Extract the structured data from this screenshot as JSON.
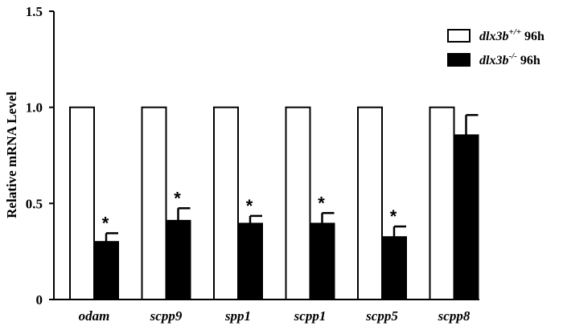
{
  "chart_data": {
    "type": "bar",
    "ylabel": "Relative mRNA Level",
    "ylim": [
      0,
      1.5
    ],
    "yticks": [
      "0",
      "0.5",
      "1.0",
      "1.5"
    ],
    "categories": [
      "odam",
      "scpp9",
      "spp1",
      "scpp1",
      "scpp5",
      "scpp8"
    ],
    "series": [
      {
        "name": "dlx3b+/+ 96h",
        "legend_gene": "dlx3b",
        "legend_sup": "+/+",
        "legend_suffix": " 96h",
        "fill": "#ffffff",
        "values": [
          1.0,
          1.0,
          1.0,
          1.0,
          1.0,
          1.0
        ],
        "errors": [
          0,
          0,
          0,
          0,
          0,
          0
        ]
      },
      {
        "name": "dlx3b-/- 96h",
        "legend_gene": "dlx3b",
        "legend_sup": "-/-",
        "legend_suffix": " 96h",
        "fill": "#000000",
        "values": [
          0.3,
          0.41,
          0.395,
          0.395,
          0.325,
          0.855
        ],
        "errors": [
          0.045,
          0.065,
          0.04,
          0.055,
          0.055,
          0.105
        ]
      }
    ],
    "significance": [
      "*",
      "*",
      "*",
      "*",
      "*",
      ""
    ],
    "legend_position": "top-right",
    "grid": false
  }
}
